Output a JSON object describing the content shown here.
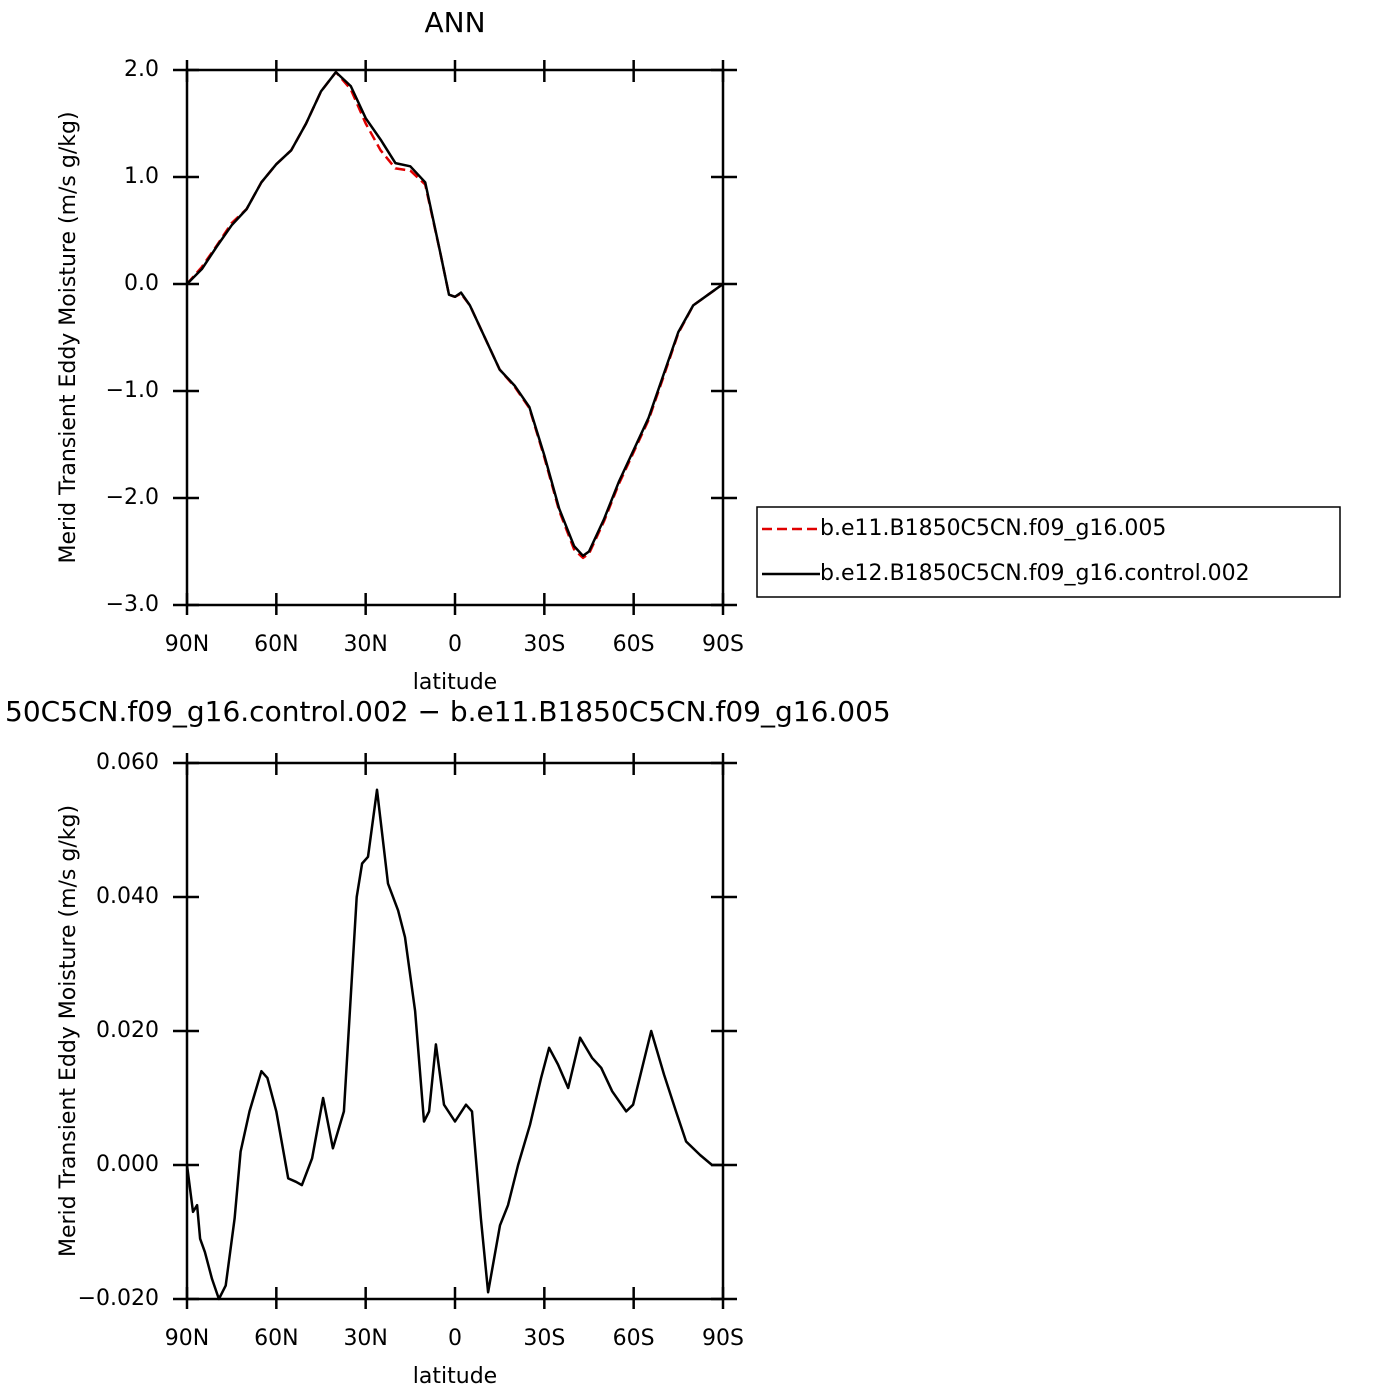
{
  "chart_data": [
    {
      "type": "line",
      "title": "ANN",
      "x_label": "latitude",
      "y_label": "Merid Transient Eddy Moisture (m/s g/kg)",
      "xlim": [
        90,
        -90
      ],
      "ylim": [
        -3.0,
        2.0
      ],
      "xticks": [
        {
          "value": 90,
          "label": "90N"
        },
        {
          "value": 60,
          "label": "60N"
        },
        {
          "value": 30,
          "label": "30N"
        },
        0,
        {
          "value": -30,
          "label": "30S"
        },
        {
          "value": -60,
          "label": "60S"
        },
        {
          "value": -90,
          "label": "90S"
        }
      ],
      "yticks": [
        {
          "value": 2.0,
          "label": "2.0"
        },
        {
          "value": 1.0,
          "label": "1.0"
        },
        {
          "value": 0.0,
          "label": "0.0"
        },
        {
          "value": -1.0,
          "label": "−1.0"
        },
        {
          "value": -2.0,
          "label": "−2.0"
        },
        {
          "value": -3.0,
          "label": "−3.0"
        }
      ],
      "legend": "right",
      "x": [
        90,
        85,
        80,
        75,
        70,
        65,
        60,
        55,
        50,
        45,
        40,
        35,
        30,
        25,
        20,
        15,
        10,
        5,
        2,
        0,
        -2,
        -5,
        -10,
        -15,
        -20,
        -25,
        -30,
        -35,
        -40,
        -43,
        -45,
        -50,
        -55,
        -60,
        -65,
        -70,
        -75,
        -80,
        -85,
        -90
      ],
      "series": [
        {
          "name": "b.e11.B1850C5CN.f09_g16.005",
          "color": "#e00000",
          "dash": true,
          "values": [
            0.0,
            0.16,
            0.36,
            0.57,
            0.7,
            0.95,
            1.12,
            1.25,
            1.5,
            1.8,
            1.98,
            1.82,
            1.5,
            1.25,
            1.08,
            1.06,
            0.93,
            0.3,
            -0.1,
            -0.12,
            -0.09,
            -0.2,
            -0.5,
            -0.8,
            -0.96,
            -1.16,
            -1.62,
            -2.12,
            -2.48,
            -2.56,
            -2.52,
            -2.22,
            -1.87,
            -1.57,
            -1.27,
            -0.87,
            -0.46,
            -0.2,
            -0.1,
            0.0
          ]
        },
        {
          "name": "b.e12.B1850C5CN.f09_g16.control.002",
          "color": "#000000",
          "dash": false,
          "values": [
            0.0,
            0.14,
            0.35,
            0.55,
            0.7,
            0.95,
            1.12,
            1.25,
            1.5,
            1.8,
            1.98,
            1.85,
            1.55,
            1.35,
            1.13,
            1.1,
            0.95,
            0.3,
            -0.1,
            -0.12,
            -0.08,
            -0.2,
            -0.5,
            -0.8,
            -0.95,
            -1.15,
            -1.6,
            -2.1,
            -2.45,
            -2.54,
            -2.5,
            -2.2,
            -1.85,
            -1.55,
            -1.25,
            -0.85,
            -0.45,
            -0.2,
            -0.1,
            0.0
          ]
        }
      ]
    },
    {
      "type": "line",
      "title": "50C5CN.f09_g16.control.002 − b.e11.B1850C5CN.f09_g16.005",
      "x_label": "latitude",
      "y_label": "Merid Transient Eddy Moisture (m/s g/kg)",
      "xlim": [
        90,
        -90
      ],
      "ylim": [
        -0.02,
        0.06
      ],
      "xticks": [
        {
          "value": 90,
          "label": "90N"
        },
        {
          "value": 60,
          "label": "60N"
        },
        {
          "value": 30,
          "label": "30N"
        },
        0,
        {
          "value": -30,
          "label": "30S"
        },
        {
          "value": -60,
          "label": "60S"
        },
        {
          "value": -90,
          "label": "90S"
        }
      ],
      "yticks": [
        {
          "value": 0.06,
          "label": "0.060"
        },
        {
          "value": 0.04,
          "label": "0.040"
        },
        {
          "value": 0.02,
          "label": "0.020"
        },
        {
          "value": 0.0,
          "label": "0.000"
        },
        {
          "value": -0.02,
          "label": "−0.020"
        }
      ],
      "x": [
        90,
        88,
        86.6,
        85.6,
        84,
        81.6,
        79.3,
        77,
        74,
        72,
        69,
        65,
        63,
        60,
        56,
        53.4,
        51.4,
        48,
        44.3,
        41,
        37.3,
        33,
        31.2,
        29.2,
        26.2,
        22.5,
        19.1,
        16.8,
        13.4,
        10.4,
        8.7,
        6.4,
        3.7,
        0,
        -3.7,
        -5.7,
        -8.7,
        -11.1,
        -15.1,
        -17.8,
        -21.2,
        -25.2,
        -28.9,
        -31.6,
        -34.6,
        -38,
        -42,
        -46,
        -49.1,
        -52.8,
        -57.5,
        -59.8,
        -65.9,
        -70.2,
        -74.2,
        -77.6,
        -82.3,
        -86.3,
        -90
      ],
      "series": [
        {
          "color": "#000000",
          "dash": false,
          "values": [
            0.0,
            -0.007,
            -0.006,
            -0.011,
            -0.013,
            -0.017,
            -0.02,
            -0.018,
            -0.008,
            0.002,
            0.008,
            0.014,
            0.013,
            0.008,
            -0.002,
            -0.0025,
            -0.003,
            0.001,
            0.01,
            0.0025,
            0.008,
            0.04,
            0.045,
            0.046,
            0.056,
            0.042,
            0.038,
            0.034,
            0.023,
            0.0065,
            0.008,
            0.018,
            0.009,
            0.0065,
            0.009,
            0.008,
            -0.008,
            -0.019,
            -0.009,
            -0.006,
            0.0,
            0.006,
            0.013,
            0.0175,
            0.015,
            0.0115,
            0.019,
            0.016,
            0.0145,
            0.011,
            0.008,
            0.009,
            0.02,
            0.0135,
            0.008,
            0.0035,
            0.0015,
            0.0,
            0.0
          ]
        }
      ]
    }
  ]
}
